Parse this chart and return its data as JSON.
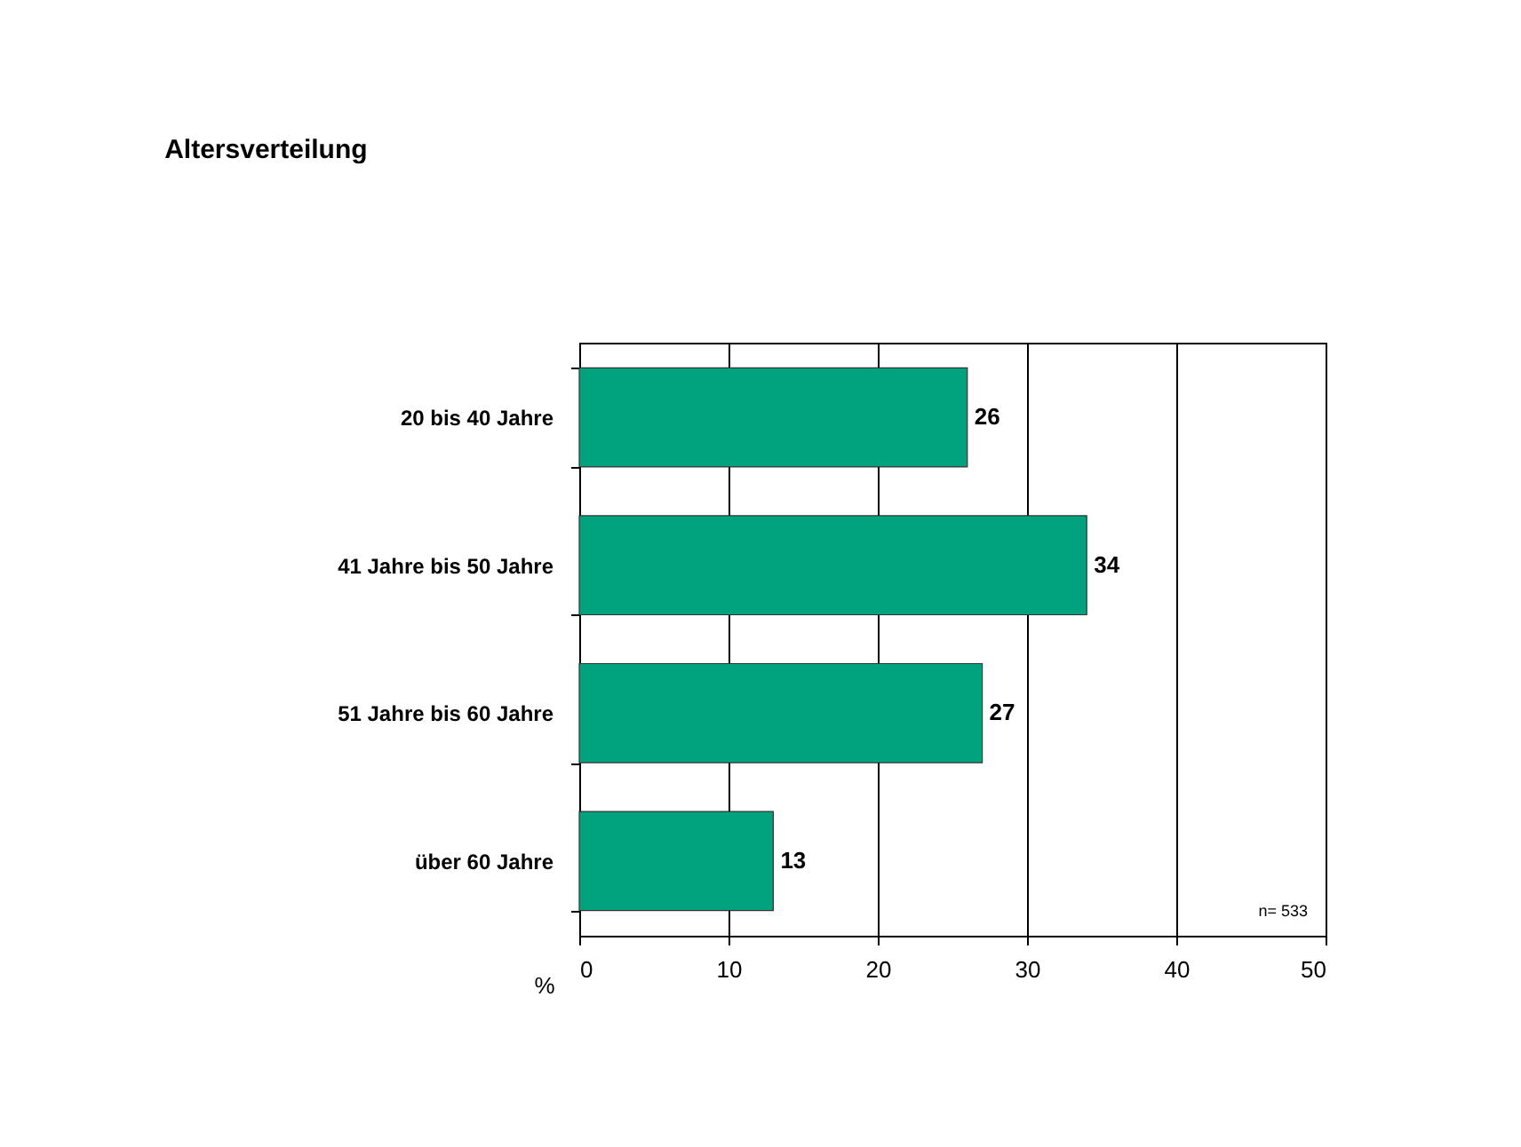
{
  "chart_data": {
    "type": "bar",
    "orientation": "horizontal",
    "title": "Altersverteilung",
    "xlabel": "%",
    "categories": [
      "20 bis 40 Jahre",
      "41 Jahre bis 50 Jahre",
      "51 Jahre bis 60 Jahre",
      "über 60 Jahre"
    ],
    "values": [
      26,
      34,
      27,
      13
    ],
    "color": "#00a37e",
    "xlim": [
      0,
      50
    ],
    "xticks": [
      0,
      10,
      20,
      30,
      40,
      50
    ],
    "grid": "x",
    "data_labels": true,
    "annotations": [
      "n= 533"
    ]
  }
}
